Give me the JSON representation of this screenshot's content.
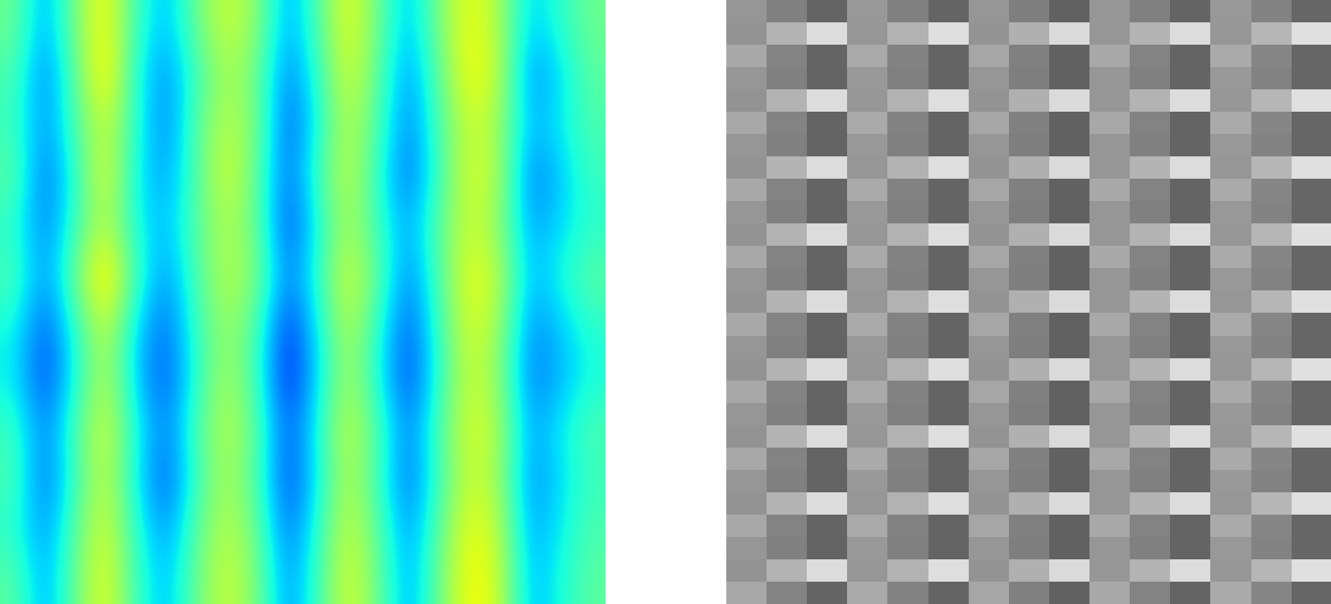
{
  "chart_data": [
    {
      "type": "heatmap",
      "color": "jet",
      "clim": [
        0,
        100
      ],
      "tick_labels": false,
      "cells": [
        [
          48,
          28,
          50,
          66,
          42,
          30,
          48,
          60,
          52,
          28,
          44,
          64,
          48,
          30,
          50,
          64,
          56,
          32,
          40,
          48
        ],
        [
          44,
          24,
          46,
          70,
          38,
          26,
          42,
          56,
          48,
          24,
          40,
          62,
          46,
          26,
          46,
          66,
          58,
          26,
          34,
          46
        ],
        [
          42,
          26,
          44,
          60,
          40,
          24,
          46,
          58,
          50,
          20,
          38,
          58,
          44,
          24,
          44,
          60,
          54,
          30,
          36,
          44
        ],
        [
          46,
          22,
          40,
          64,
          36,
          28,
          44,
          62,
          46,
          22,
          42,
          60,
          40,
          22,
          42,
          62,
          56,
          24,
          32,
          42
        ],
        [
          40,
          24,
          42,
          58,
          38,
          30,
          46,
          56,
          48,
          18,
          38,
          56,
          42,
          28,
          46,
          60,
          52,
          28,
          34,
          40
        ],
        [
          44,
          26,
          48,
          72,
          42,
          26,
          44,
          58,
          50,
          24,
          40,
          62,
          46,
          24,
          44,
          64,
          58,
          30,
          38,
          46
        ],
        [
          38,
          20,
          40,
          60,
          34,
          22,
          42,
          54,
          44,
          16,
          36,
          58,
          40,
          20,
          42,
          62,
          54,
          26,
          32,
          40
        ],
        [
          36,
          18,
          38,
          58,
          32,
          20,
          40,
          56,
          42,
          14,
          34,
          56,
          38,
          18,
          40,
          60,
          52,
          24,
          30,
          38
        ],
        [
          42,
          24,
          44,
          62,
          38,
          24,
          44,
          58,
          46,
          20,
          38,
          60,
          44,
          24,
          44,
          62,
          56,
          28,
          36,
          44
        ],
        [
          44,
          22,
          42,
          60,
          36,
          20,
          42,
          56,
          44,
          18,
          36,
          58,
          42,
          22,
          42,
          60,
          54,
          26,
          34,
          42
        ],
        [
          40,
          26,
          46,
          62,
          40,
          26,
          46,
          58,
          48,
          22,
          40,
          60,
          46,
          26,
          46,
          64,
          58,
          28,
          36,
          44
        ],
        [
          46,
          28,
          48,
          64,
          42,
          30,
          48,
          60,
          50,
          26,
          42,
          62,
          48,
          28,
          48,
          66,
          60,
          30,
          38,
          46
        ]
      ]
    },
    {
      "type": "heatmap",
      "color": "gray",
      "clim": [
        0,
        255
      ],
      "tick_labels": false,
      "cells": [
        [
          150,
          128,
          100,
          152,
          128,
          100,
          150,
          126,
          98,
          150,
          128,
          100,
          152,
          130,
          102
        ],
        [
          148,
          180,
          220,
          150,
          178,
          222,
          148,
          176,
          218,
          150,
          180,
          220,
          150,
          182,
          224
        ],
        [
          168,
          132,
          100,
          170,
          130,
          100,
          166,
          128,
          98,
          168,
          132,
          100,
          170,
          134,
          102
        ],
        [
          150,
          128,
          100,
          152,
          128,
          100,
          150,
          126,
          98,
          150,
          128,
          100,
          152,
          130,
          102
        ],
        [
          148,
          180,
          220,
          150,
          178,
          222,
          148,
          176,
          218,
          150,
          180,
          220,
          150,
          182,
          224
        ],
        [
          168,
          132,
          100,
          170,
          130,
          100,
          166,
          128,
          98,
          168,
          132,
          100,
          170,
          134,
          102
        ],
        [
          150,
          128,
          100,
          152,
          128,
          100,
          150,
          126,
          98,
          150,
          128,
          100,
          152,
          130,
          102
        ],
        [
          148,
          180,
          220,
          150,
          178,
          222,
          148,
          176,
          218,
          150,
          180,
          220,
          150,
          182,
          224
        ],
        [
          168,
          132,
          100,
          170,
          130,
          100,
          166,
          128,
          98,
          168,
          132,
          100,
          170,
          134,
          102
        ],
        [
          150,
          128,
          100,
          152,
          128,
          100,
          150,
          126,
          98,
          150,
          128,
          100,
          152,
          130,
          102
        ],
        [
          148,
          180,
          220,
          150,
          178,
          222,
          148,
          176,
          218,
          150,
          180,
          220,
          150,
          182,
          224
        ],
        [
          168,
          132,
          100,
          170,
          130,
          100,
          166,
          128,
          98,
          168,
          132,
          100,
          170,
          134,
          102
        ],
        [
          150,
          128,
          100,
          152,
          128,
          100,
          150,
          126,
          98,
          150,
          128,
          100,
          152,
          130,
          102
        ],
        [
          148,
          180,
          220,
          150,
          178,
          222,
          148,
          176,
          218,
          150,
          180,
          220,
          150,
          182,
          224
        ],
        [
          168,
          132,
          100,
          170,
          130,
          100,
          166,
          128,
          98,
          168,
          132,
          100,
          170,
          134,
          102
        ],
        [
          150,
          128,
          100,
          152,
          128,
          100,
          150,
          126,
          98,
          150,
          128,
          100,
          152,
          130,
          102
        ],
        [
          148,
          180,
          220,
          150,
          178,
          222,
          148,
          176,
          218,
          150,
          180,
          220,
          150,
          182,
          224
        ],
        [
          168,
          132,
          100,
          170,
          130,
          100,
          166,
          128,
          98,
          168,
          132,
          100,
          170,
          134,
          102
        ],
        [
          150,
          128,
          100,
          152,
          128,
          100,
          150,
          126,
          98,
          150,
          128,
          100,
          152,
          130,
          102
        ],
        [
          148,
          180,
          220,
          150,
          178,
          222,
          148,
          176,
          218,
          150,
          180,
          220,
          150,
          182,
          224
        ],
        [
          168,
          132,
          100,
          170,
          130,
          100,
          166,
          128,
          98,
          168,
          132,
          100,
          170,
          134,
          102
        ],
        [
          150,
          128,
          100,
          152,
          128,
          100,
          150,
          126,
          98,
          150,
          128,
          100,
          152,
          130,
          102
        ],
        [
          148,
          180,
          220,
          150,
          178,
          222,
          148,
          176,
          218,
          150,
          180,
          220,
          150,
          182,
          224
        ],
        [
          168,
          132,
          100,
          170,
          130,
          100,
          166,
          128,
          98,
          168,
          132,
          100,
          170,
          134,
          102
        ],
        [
          150,
          128,
          100,
          152,
          128,
          100,
          150,
          126,
          98,
          150,
          128,
          100,
          152,
          130,
          102
        ],
        [
          148,
          180,
          220,
          150,
          178,
          222,
          148,
          176,
          218,
          150,
          180,
          220,
          150,
          182,
          224
        ],
        [
          168,
          132,
          100,
          170,
          130,
          100,
          166,
          128,
          98,
          168,
          132,
          100,
          170,
          134,
          102
        ]
      ]
    }
  ]
}
